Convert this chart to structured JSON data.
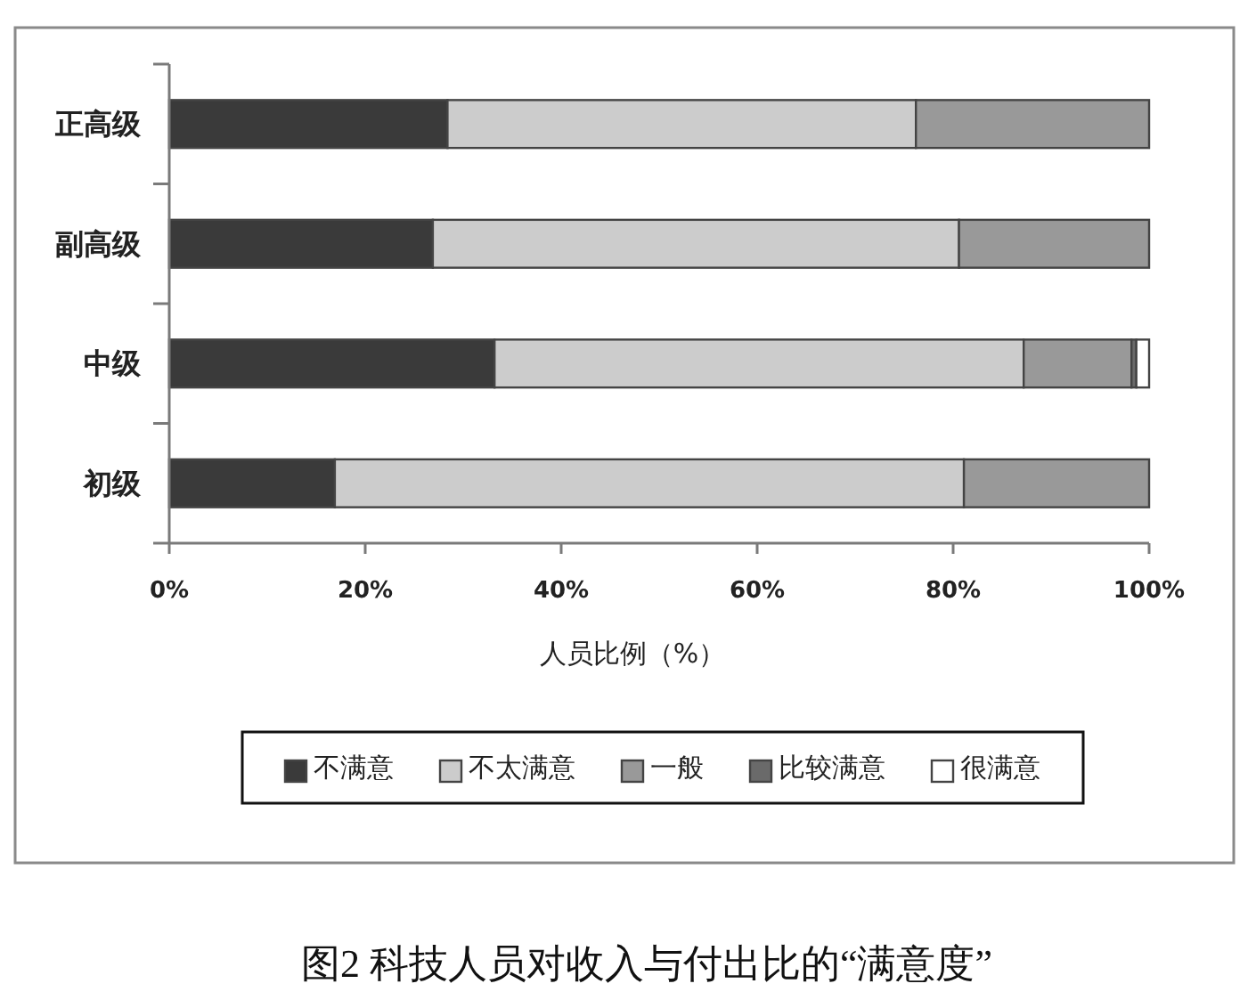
{
  "chart_data": {
    "type": "bar",
    "orientation": "horizontal",
    "stacked": true,
    "title": "图2 科技人员对收入与付出比的“满意度”",
    "xlabel": "人员比例（%）",
    "categories": [
      "正高级",
      "副高级",
      "中级",
      "初级"
    ],
    "series": [
      {
        "name": "不满意",
        "color": "#3a3a3a",
        "values": [
          28.4,
          26.9,
          33.2,
          16.9
        ]
      },
      {
        "name": "不太满意",
        "color": "#cccccc",
        "values": [
          47.8,
          53.7,
          54.0,
          64.2
        ]
      },
      {
        "name": "一般",
        "color": "#999999",
        "values": [
          23.8,
          19.4,
          11.0,
          18.9
        ]
      },
      {
        "name": "比较满意",
        "color": "#6a6a6a",
        "values": [
          0,
          0,
          0.5,
          0
        ]
      },
      {
        "name": "很满意",
        "color": "#ffffff",
        "values": [
          0,
          0,
          1.3,
          0
        ]
      }
    ],
    "xlim": [
      0,
      100
    ],
    "xticks": [
      {
        "value": 0,
        "label": "0%"
      },
      {
        "value": 20,
        "label": "20%"
      },
      {
        "value": 40,
        "label": "40%"
      },
      {
        "value": 60,
        "label": "60%"
      },
      {
        "value": 80,
        "label": "80%"
      },
      {
        "value": 100,
        "label": "100%"
      }
    ],
    "legend": "bottom"
  }
}
